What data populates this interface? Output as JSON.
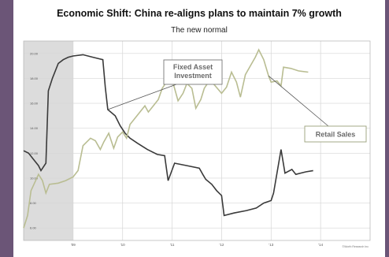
{
  "chart_data": {
    "type": "line",
    "title": "Economic Shift: China re-aligns plans to maintain 7% growth",
    "subtitle": "The new normal",
    "xlabel": "",
    "ylabel": "",
    "x_range": [
      2008.0,
      2015.0
    ],
    "x_ticks": [
      {
        "x": 2009.0,
        "label": "'09"
      },
      {
        "x": 2010.0,
        "label": "'10"
      },
      {
        "x": 2011.0,
        "label": "'11"
      },
      {
        "x": 2012.0,
        "label": "'12"
      },
      {
        "x": 2013.0,
        "label": "'13"
      },
      {
        "x": 2014.0,
        "label": "'14"
      }
    ],
    "ylim": [
      5.0,
      21.0
    ],
    "y_ticks": [
      {
        "y": 6,
        "label": "6.00"
      },
      {
        "y": 8,
        "label": "8.00"
      },
      {
        "y": 10,
        "label": "10.00"
      },
      {
        "y": 12,
        "label": "12.00"
      },
      {
        "y": 14,
        "label": "14.00"
      },
      {
        "y": 16,
        "label": "16.00"
      },
      {
        "y": 18,
        "label": "18.00"
      },
      {
        "y": 20,
        "label": "20.00"
      }
    ],
    "grid": true,
    "shaded_region": [
      2008.0,
      2009.0
    ],
    "series": [
      {
        "name": "Fixed Asset Investment",
        "color": "#3a3a3a",
        "points": [
          [
            2008.0,
            12.2
          ],
          [
            2008.1,
            12.0
          ],
          [
            2008.2,
            11.5
          ],
          [
            2008.3,
            11.0
          ],
          [
            2008.35,
            10.6
          ],
          [
            2008.45,
            11.2
          ],
          [
            2008.5,
            17.0
          ],
          [
            2008.58,
            18.0
          ],
          [
            2008.7,
            19.2
          ],
          [
            2008.8,
            19.5
          ],
          [
            2008.9,
            19.7
          ],
          [
            2009.0,
            19.8
          ],
          [
            2009.2,
            19.9
          ],
          [
            2009.4,
            19.7
          ],
          [
            2009.6,
            19.5
          ],
          [
            2009.65,
            17.3
          ],
          [
            2009.7,
            15.5
          ],
          [
            2009.85,
            15.0
          ],
          [
            2009.95,
            14.2
          ],
          [
            2010.05,
            13.6
          ],
          [
            2010.15,
            13.2
          ],
          [
            2010.3,
            12.8
          ],
          [
            2010.5,
            12.3
          ],
          [
            2010.7,
            11.9
          ],
          [
            2010.85,
            11.8
          ],
          [
            2010.92,
            9.8
          ],
          [
            2011.05,
            11.2
          ],
          [
            2011.3,
            11.0
          ],
          [
            2011.55,
            10.8
          ],
          [
            2011.62,
            10.3
          ],
          [
            2011.68,
            9.9
          ],
          [
            2011.8,
            9.5
          ],
          [
            2011.9,
            9.0
          ],
          [
            2012.0,
            8.6
          ],
          [
            2012.05,
            7.0
          ],
          [
            2012.25,
            7.2
          ],
          [
            2012.5,
            7.4
          ],
          [
            2012.7,
            7.6
          ],
          [
            2012.85,
            8.0
          ],
          [
            2013.0,
            8.2
          ],
          [
            2013.05,
            8.8
          ],
          [
            2013.2,
            12.3
          ],
          [
            2013.28,
            10.4
          ],
          [
            2013.42,
            10.7
          ],
          [
            2013.5,
            10.3
          ],
          [
            2013.7,
            10.5
          ],
          [
            2013.85,
            10.6
          ]
        ]
      },
      {
        "name": "Retail Sales",
        "color": "#b9bd92",
        "points": [
          [
            2008.0,
            6.0
          ],
          [
            2008.08,
            7.0
          ],
          [
            2008.15,
            9.0
          ],
          [
            2008.3,
            10.3
          ],
          [
            2008.38,
            9.8
          ],
          [
            2008.45,
            8.8
          ],
          [
            2008.52,
            9.5
          ],
          [
            2008.7,
            9.6
          ],
          [
            2008.85,
            9.8
          ],
          [
            2009.0,
            10.1
          ],
          [
            2009.1,
            10.6
          ],
          [
            2009.2,
            12.6
          ],
          [
            2009.35,
            13.2
          ],
          [
            2009.45,
            13.0
          ],
          [
            2009.55,
            12.3
          ],
          [
            2009.62,
            12.9
          ],
          [
            2009.72,
            13.6
          ],
          [
            2009.82,
            12.4
          ],
          [
            2009.9,
            13.3
          ],
          [
            2010.0,
            13.7
          ],
          [
            2010.08,
            13.2
          ],
          [
            2010.15,
            14.3
          ],
          [
            2010.25,
            14.8
          ],
          [
            2010.35,
            15.3
          ],
          [
            2010.45,
            15.8
          ],
          [
            2010.52,
            15.3
          ],
          [
            2010.62,
            15.8
          ],
          [
            2010.72,
            16.3
          ],
          [
            2010.8,
            17.2
          ],
          [
            2010.9,
            17.8
          ],
          [
            2010.97,
            18.3
          ],
          [
            2011.05,
            17.2
          ],
          [
            2011.12,
            16.2
          ],
          [
            2011.22,
            16.8
          ],
          [
            2011.3,
            17.6
          ],
          [
            2011.4,
            17.2
          ],
          [
            2011.48,
            15.6
          ],
          [
            2011.58,
            16.3
          ],
          [
            2011.65,
            17.2
          ],
          [
            2011.75,
            17.8
          ],
          [
            2011.85,
            17.5
          ],
          [
            2012.0,
            16.8
          ],
          [
            2012.1,
            17.3
          ],
          [
            2012.2,
            18.5
          ],
          [
            2012.3,
            17.7
          ],
          [
            2012.38,
            16.5
          ],
          [
            2012.48,
            18.3
          ],
          [
            2012.58,
            19.0
          ],
          [
            2012.68,
            19.7
          ],
          [
            2012.75,
            20.3
          ],
          [
            2012.85,
            19.5
          ],
          [
            2012.95,
            18.2
          ],
          [
            2013.0,
            17.7
          ],
          [
            2013.12,
            17.8
          ],
          [
            2013.2,
            17.4
          ],
          [
            2013.25,
            18.9
          ],
          [
            2013.4,
            18.8
          ],
          [
            2013.55,
            18.6
          ],
          [
            2013.75,
            18.5
          ]
        ]
      }
    ],
    "annotations": [
      {
        "text": "Fixed Asset\nInvestment",
        "target_series": "Fixed Asset Investment"
      },
      {
        "text": "Retail Sales",
        "target_series": "Retail Sales"
      }
    ],
    "source_note": "©Worth Research Inc"
  }
}
